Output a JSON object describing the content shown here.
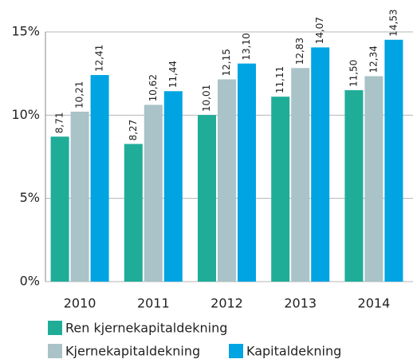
{
  "chart_data": {
    "type": "bar",
    "categories": [
      "2010",
      "2011",
      "2012",
      "2013",
      "2014"
    ],
    "series": [
      {
        "name": "Ren kjernekapitaldekning",
        "color": "#20ad98",
        "values": [
          8.71,
          8.27,
          10.01,
          11.11,
          11.5
        ],
        "value_labels": [
          "8,71",
          "8,27",
          "10,01",
          "11,11",
          "11,50"
        ]
      },
      {
        "name": "Kjernekapitaldekning",
        "color": "#a9c3c8",
        "values": [
          10.21,
          10.62,
          12.15,
          12.83,
          12.34
        ],
        "value_labels": [
          "10,21",
          "10,62",
          "12,15",
          "12,83",
          "12,34"
        ]
      },
      {
        "name": "Kapitaldekning",
        "color": "#00a4e2",
        "values": [
          12.41,
          11.44,
          13.1,
          14.07,
          14.53
        ],
        "value_labels": [
          "12,41",
          "11,44",
          "13,10",
          "14,07",
          "14,53"
        ]
      }
    ],
    "ylim": [
      0,
      15
    ],
    "yticks": [
      {
        "value": 0,
        "label": "0%"
      },
      {
        "value": 5,
        "label": "5%"
      },
      {
        "value": 10,
        "label": "10%"
      },
      {
        "value": 15,
        "label": "15%"
      }
    ],
    "grid": true
  }
}
